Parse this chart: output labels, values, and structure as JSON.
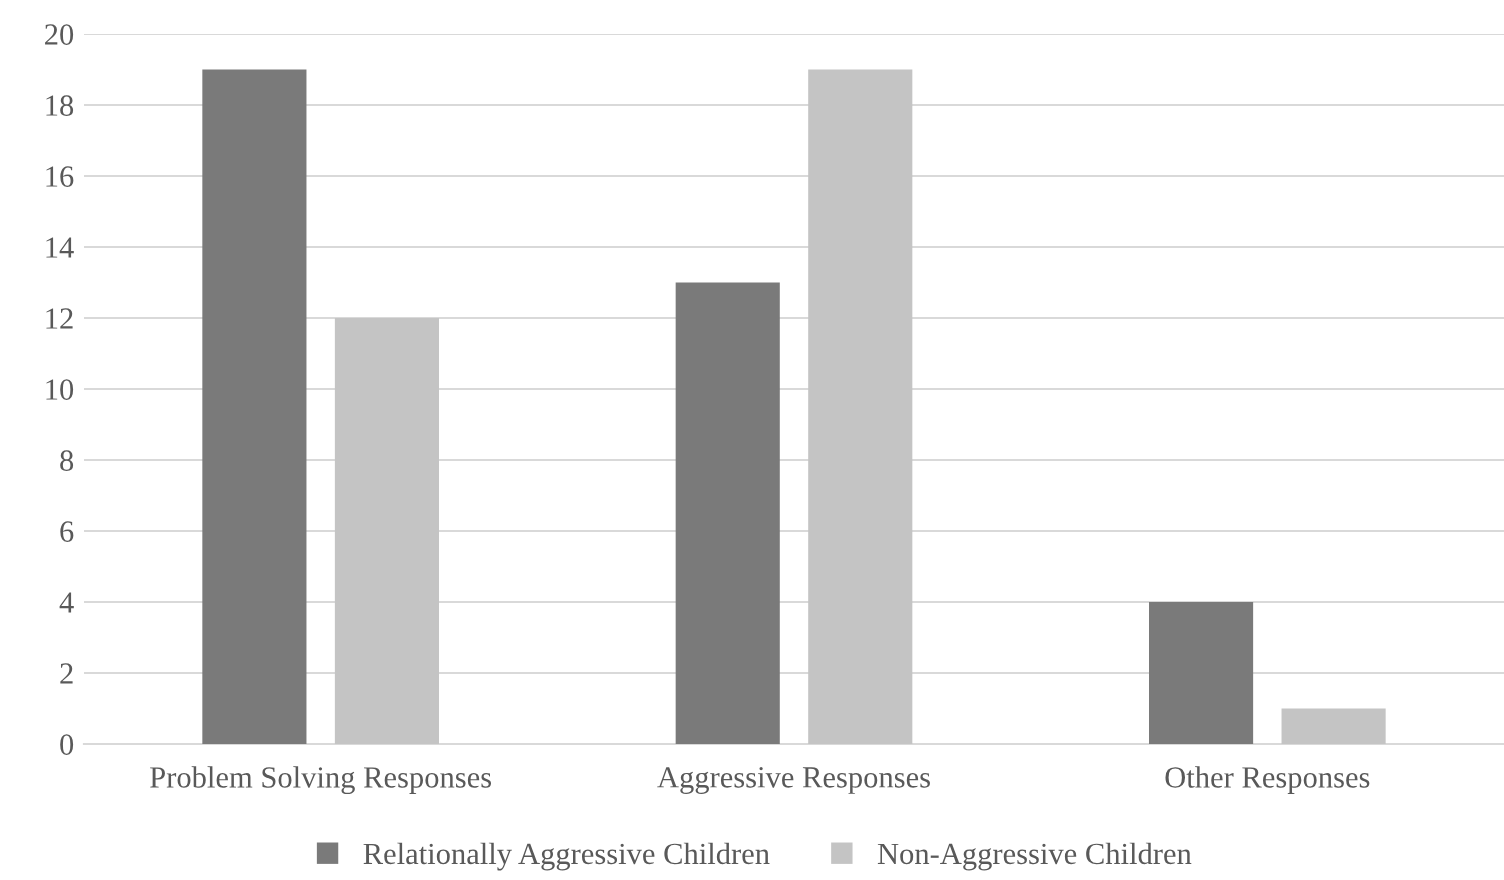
{
  "chart_data": {
    "type": "bar",
    "categories": [
      "Problem Solving Responses",
      "Aggressive Responses",
      "Other Responses"
    ],
    "series": [
      {
        "name": "Relationally Aggressive Children",
        "color": "#7a7a7a",
        "values": [
          19,
          13,
          4
        ]
      },
      {
        "name": "Non-Aggressive Children",
        "color": "#c4c4c4",
        "values": [
          12,
          19,
          1
        ]
      }
    ],
    "ylim": [
      0,
      20
    ],
    "yticks": [
      0,
      2,
      4,
      6,
      8,
      10,
      12,
      14,
      16,
      18,
      20
    ],
    "grid": "y",
    "legend": "bottom"
  }
}
